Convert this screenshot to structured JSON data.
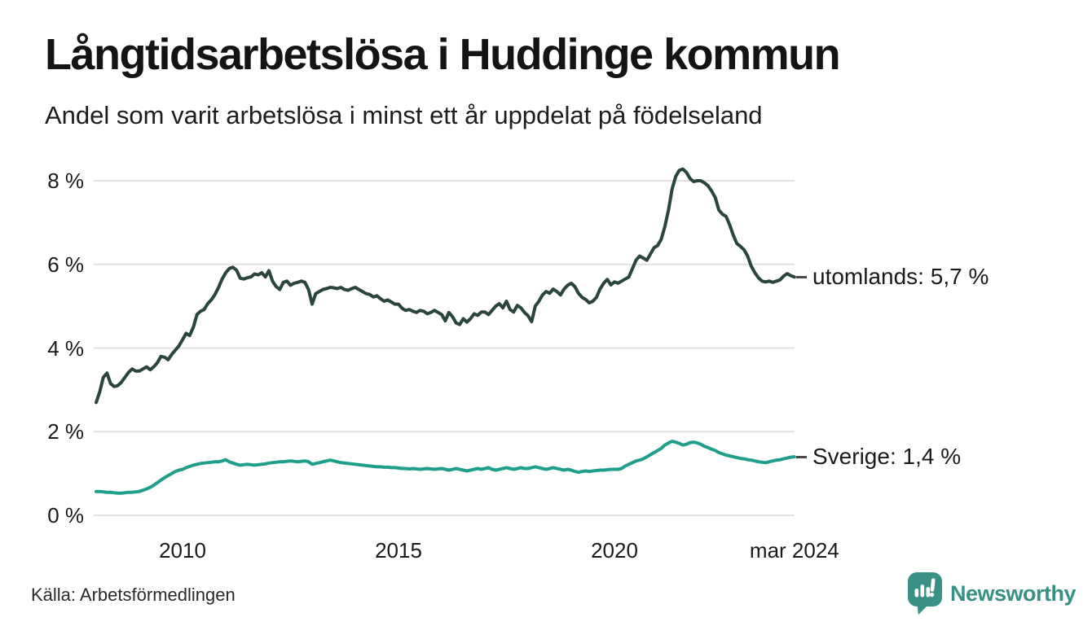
{
  "footer": {
    "source": "Källa: Arbetsförmedlingen",
    "logo_text": "Newsworthy"
  },
  "colors": {
    "background": "#ffffff",
    "grid": "#e1e1e1",
    "text": "#1a1a1a",
    "utomlands_line": "#2a443e",
    "sverige_line": "#1e9e8b",
    "logo_teal": "#399186"
  },
  "chart_data": {
    "type": "line",
    "title": "Långtidsarbetslösa i Huddinge kommun",
    "subtitle": "Andel som varit arbetslösa i minst ett år uppdelat på födelseland",
    "x_start_year": 2008,
    "x_step_months": 1,
    "x_end": "mar 2024",
    "ylim": [
      0,
      8.6
    ],
    "grid": "horizontal",
    "legend_position": "end-of-line-labels",
    "yticks": [
      {
        "value": 0,
        "label": "0 %"
      },
      {
        "value": 2,
        "label": "2 %"
      },
      {
        "value": 4,
        "label": "4 %"
      },
      {
        "value": 6,
        "label": "6 %"
      },
      {
        "value": 8,
        "label": "8 %"
      }
    ],
    "xticks": [
      {
        "year": 2010.0,
        "label": "2010"
      },
      {
        "year": 2015.0,
        "label": "2015"
      },
      {
        "year": 2020.0,
        "label": "2020"
      },
      {
        "year": 2024.1667,
        "label": "mar 2024"
      }
    ],
    "series": [
      {
        "name": "utomlands",
        "color": "#2a443e",
        "end_label": "utomlands: 5,7 %",
        "end_value_text": "5,7 %",
        "values": [
          2.7,
          2.95,
          3.3,
          3.4,
          3.15,
          3.08,
          3.1,
          3.18,
          3.3,
          3.42,
          3.5,
          3.45,
          3.45,
          3.5,
          3.55,
          3.48,
          3.55,
          3.65,
          3.8,
          3.78,
          3.72,
          3.85,
          3.95,
          4.05,
          4.2,
          4.35,
          4.3,
          4.5,
          4.8,
          4.88,
          4.92,
          5.06,
          5.15,
          5.28,
          5.45,
          5.65,
          5.8,
          5.9,
          5.93,
          5.86,
          5.67,
          5.65,
          5.68,
          5.7,
          5.77,
          5.75,
          5.8,
          5.7,
          5.85,
          5.6,
          5.47,
          5.4,
          5.57,
          5.6,
          5.5,
          5.55,
          5.57,
          5.6,
          5.57,
          5.4,
          5.05,
          5.3,
          5.35,
          5.4,
          5.42,
          5.45,
          5.44,
          5.42,
          5.45,
          5.4,
          5.38,
          5.42,
          5.45,
          5.4,
          5.35,
          5.3,
          5.28,
          5.22,
          5.25,
          5.18,
          5.12,
          5.15,
          5.1,
          5.05,
          5.05,
          4.95,
          4.9,
          4.92,
          4.88,
          4.85,
          4.9,
          4.88,
          4.82,
          4.85,
          4.9,
          4.85,
          4.8,
          4.65,
          4.85,
          4.75,
          4.6,
          4.56,
          4.7,
          4.62,
          4.7,
          4.82,
          4.78,
          4.86,
          4.86,
          4.8,
          4.9,
          5.0,
          5.06,
          4.96,
          5.12,
          4.92,
          4.86,
          5.02,
          4.96,
          4.85,
          4.77,
          4.63,
          5.0,
          5.12,
          5.27,
          5.35,
          5.31,
          5.41,
          5.35,
          5.27,
          5.41,
          5.5,
          5.55,
          5.47,
          5.31,
          5.21,
          5.16,
          5.08,
          5.12,
          5.21,
          5.41,
          5.55,
          5.64,
          5.51,
          5.58,
          5.55,
          5.6,
          5.65,
          5.7,
          5.9,
          6.1,
          6.2,
          6.15,
          6.1,
          6.25,
          6.4,
          6.45,
          6.6,
          6.9,
          7.3,
          7.8,
          8.1,
          8.25,
          8.28,
          8.2,
          8.05,
          7.98,
          8.0,
          8.0,
          7.95,
          7.88,
          7.75,
          7.6,
          7.3,
          7.2,
          7.15,
          6.95,
          6.7,
          6.5,
          6.43,
          6.35,
          6.2,
          5.96,
          5.8,
          5.68,
          5.6,
          5.58,
          5.6,
          5.57,
          5.6,
          5.63,
          5.72,
          5.78,
          5.73,
          5.7
        ]
      },
      {
        "name": "Sverige",
        "color": "#1e9e8b",
        "end_label": "Sverige: 1,4 %",
        "end_value_text": "1,4 %",
        "values": [
          0.57,
          0.57,
          0.56,
          0.55,
          0.55,
          0.54,
          0.53,
          0.53,
          0.54,
          0.55,
          0.55,
          0.56,
          0.57,
          0.6,
          0.63,
          0.67,
          0.72,
          0.78,
          0.84,
          0.9,
          0.95,
          1.0,
          1.05,
          1.08,
          1.1,
          1.14,
          1.17,
          1.2,
          1.22,
          1.24,
          1.25,
          1.26,
          1.27,
          1.28,
          1.28,
          1.3,
          1.33,
          1.28,
          1.25,
          1.22,
          1.2,
          1.21,
          1.22,
          1.21,
          1.2,
          1.21,
          1.22,
          1.23,
          1.25,
          1.26,
          1.27,
          1.28,
          1.28,
          1.29,
          1.3,
          1.29,
          1.28,
          1.29,
          1.3,
          1.28,
          1.22,
          1.24,
          1.26,
          1.28,
          1.3,
          1.32,
          1.3,
          1.28,
          1.26,
          1.25,
          1.24,
          1.23,
          1.22,
          1.21,
          1.2,
          1.19,
          1.18,
          1.17,
          1.16,
          1.16,
          1.15,
          1.15,
          1.14,
          1.14,
          1.13,
          1.12,
          1.12,
          1.11,
          1.12,
          1.11,
          1.1,
          1.11,
          1.12,
          1.11,
          1.1,
          1.11,
          1.12,
          1.1,
          1.08,
          1.1,
          1.12,
          1.1,
          1.08,
          1.06,
          1.08,
          1.1,
          1.12,
          1.1,
          1.12,
          1.14,
          1.1,
          1.08,
          1.1,
          1.12,
          1.14,
          1.12,
          1.1,
          1.12,
          1.14,
          1.12,
          1.12,
          1.14,
          1.16,
          1.14,
          1.12,
          1.1,
          1.12,
          1.14,
          1.12,
          1.1,
          1.08,
          1.1,
          1.08,
          1.05,
          1.03,
          1.05,
          1.06,
          1.05,
          1.06,
          1.07,
          1.08,
          1.08,
          1.09,
          1.1,
          1.1,
          1.1,
          1.12,
          1.18,
          1.22,
          1.26,
          1.3,
          1.32,
          1.35,
          1.4,
          1.45,
          1.5,
          1.55,
          1.6,
          1.68,
          1.73,
          1.77,
          1.75,
          1.72,
          1.68,
          1.7,
          1.74,
          1.75,
          1.73,
          1.7,
          1.65,
          1.62,
          1.58,
          1.55,
          1.5,
          1.47,
          1.44,
          1.42,
          1.4,
          1.38,
          1.36,
          1.35,
          1.33,
          1.32,
          1.3,
          1.28,
          1.27,
          1.26,
          1.28,
          1.3,
          1.32,
          1.33,
          1.35,
          1.37,
          1.39,
          1.4
        ]
      }
    ]
  }
}
